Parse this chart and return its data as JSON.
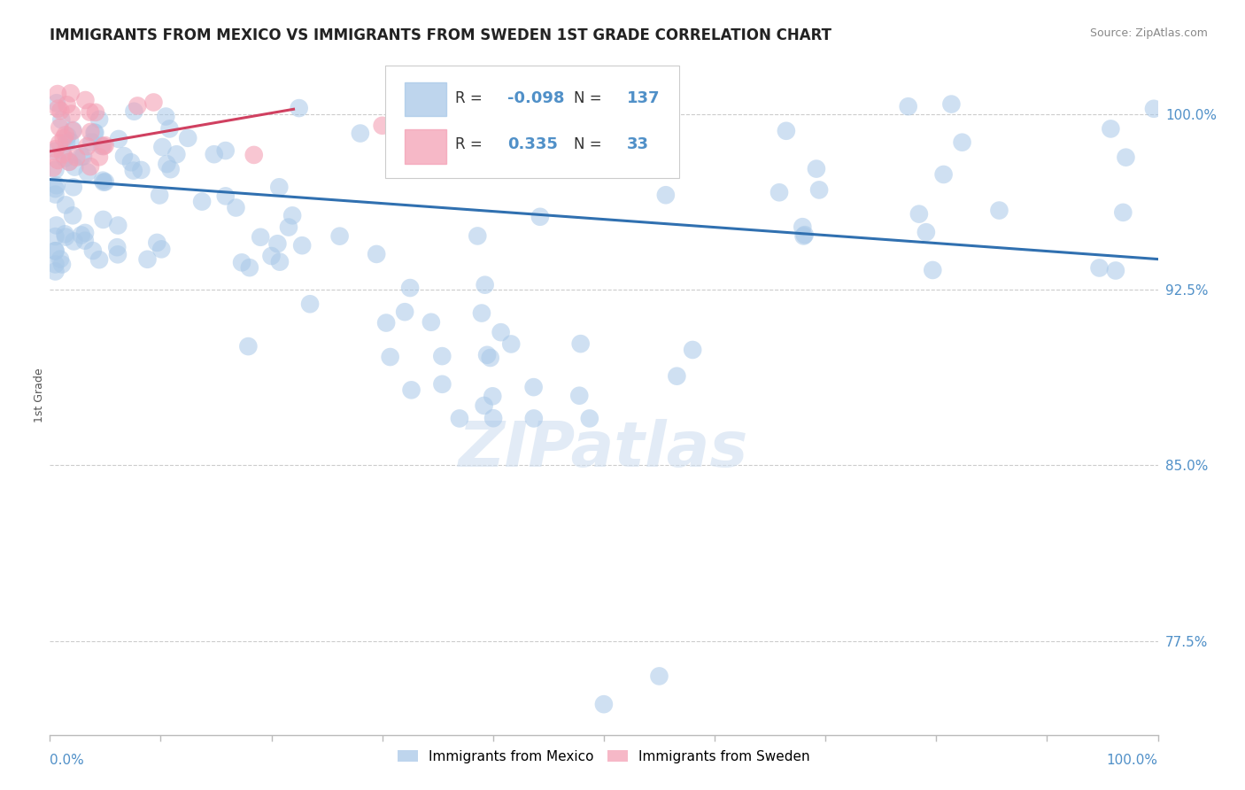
{
  "title": "IMMIGRANTS FROM MEXICO VS IMMIGRANTS FROM SWEDEN 1ST GRADE CORRELATION CHART",
  "source": "Source: ZipAtlas.com",
  "ylabel": "1st Grade",
  "yticks": [
    0.775,
    0.85,
    0.925,
    1.0
  ],
  "ytick_labels": [
    "77.5%",
    "85.0%",
    "92.5%",
    "100.0%"
  ],
  "xlim": [
    0.0,
    1.0
  ],
  "ylim": [
    0.735,
    1.025
  ],
  "r_mexico": -0.098,
  "n_mexico": 137,
  "r_sweden": 0.335,
  "n_sweden": 33,
  "color_mexico": "#A8C8E8",
  "color_sweden": "#F4A0B5",
  "line_color_mexico": "#3070B0",
  "line_color_sweden": "#D04060",
  "background_color": "#ffffff",
  "legend_label_mexico": "Immigrants from Mexico",
  "legend_label_sweden": "Immigrants from Sweden"
}
